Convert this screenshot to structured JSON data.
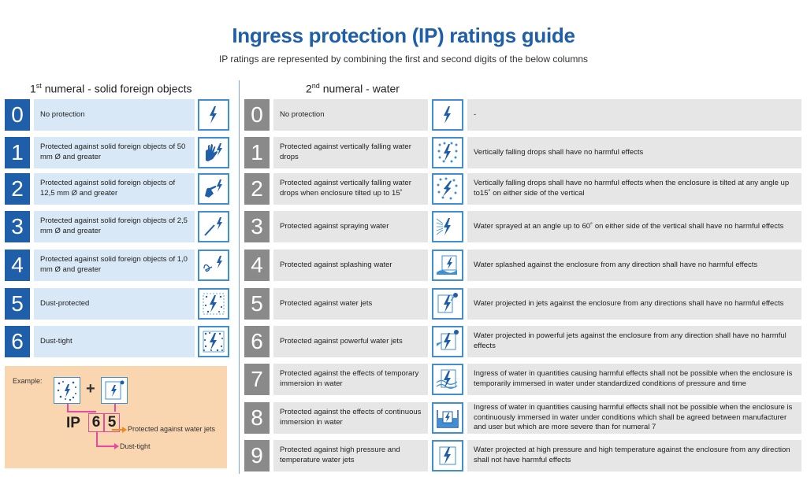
{
  "title": "Ingress protection (IP) ratings guide",
  "subtitle": "IP ratings are represented by combining the first and second digits of the below columns",
  "first_numeral": {
    "heading_pre": "1",
    "heading_sup": "st",
    "heading_post": " numeral - solid foreign objects",
    "rows": [
      {
        "num": "0",
        "desc": "No protection",
        "icon": "lightning-icon"
      },
      {
        "num": "1",
        "desc": "Protected against solid foreign objects of 50 mm Ø and greater",
        "icon": "hand-icon"
      },
      {
        "num": "2",
        "desc": "Protected against solid foreign objects of 12,5 mm Ø and greater",
        "icon": "finger-icon"
      },
      {
        "num": "3",
        "desc": "Protected against solid foreign objects of 2,5 mm Ø and greater",
        "icon": "tool-icon"
      },
      {
        "num": "4",
        "desc": "Protected against solid foreign objects of 1,0 mm Ø and greater",
        "icon": "wire-icon"
      },
      {
        "num": "5",
        "desc": "Dust-protected",
        "icon": "dust-icon"
      },
      {
        "num": "6",
        "desc": "Dust-tight",
        "icon": "dust-tight-icon"
      }
    ]
  },
  "second_numeral": {
    "heading_pre": "2",
    "heading_sup": "nd",
    "heading_post": " numeral - water",
    "rows": [
      {
        "num": "0",
        "desc": "No protection",
        "note": "-",
        "icon": "lightning-icon"
      },
      {
        "num": "1",
        "desc": "Protected against vertically falling water drops",
        "note": "Vertically falling drops shall have no harmful effects",
        "icon": "drops-icon"
      },
      {
        "num": "2",
        "desc": "Protected against vertically falling water drops when enclosure tilted up to 15˚",
        "note": "Vertically falling drops shall have no harmful effects when the enclosure is tilted at any angle up to15˚ on either side of the vertical",
        "icon": "tilted-drops-icon"
      },
      {
        "num": "3",
        "desc": "Protected against spraying water",
        "note": "Water sprayed at an angle up to 60˚ on either side of the vertical shall have no harmful effects",
        "icon": "spray-icon"
      },
      {
        "num": "4",
        "desc": "Protected against splashing water",
        "note": "Water splashed against the enclosure from any direction shall have no harmful effects",
        "icon": "splash-icon"
      },
      {
        "num": "5",
        "desc": "Protected against water jets",
        "note": "Water projected in jets against the enclosure from any directions shall have no harmful effects",
        "icon": "jet-icon"
      },
      {
        "num": "6",
        "desc": "Protected against powerful water jets",
        "note": "Water projected in powerful jets against the enclosure from any direction shall have no harmful effects",
        "icon": "powerful-jet-icon"
      },
      {
        "num": "7",
        "desc": "Protected against the effects of temporary immersion in water",
        "note": "Ingress of water in quantities causing harmful effects shall not be possible when the enclosure is temporarily immersed in water under standardized conditions of pressure and time",
        "icon": "immersion-icon"
      },
      {
        "num": "8",
        "desc": "Protected against the effects of continuous immersion in water",
        "note": "Ingress of water in quantities causing harmful effects shall not be possible when the enclosure is continuously immersed in water under conditions which shall be agreed between manufacturer and user but which are more severe than for numeral 7",
        "icon": "continuous-immersion-icon"
      },
      {
        "num": "9",
        "desc": "Protected against high pressure and temperature water jets",
        "note": "Water projected at high pressure and high temperature against the enclosure from any direction shall not have harmful effects",
        "icon": "high-pressure-jet-icon"
      }
    ]
  },
  "example": {
    "label": "Example:",
    "plus": "+",
    "ip": "IP",
    "digit1": "6",
    "digit2": "5",
    "note_second": "Protected against water jets",
    "note_first": "Dust-tight"
  },
  "colors": {
    "title": "#1f5ea8",
    "first_num_bg": "#1f5ea8",
    "first_desc_bg": "#d8e8f6",
    "second_num_bg": "#8a8a8a",
    "second_bg": "#e6e6e6",
    "icon_border": "#3f8fd2",
    "example_bg": "#f9d6b0",
    "pink": "#e54aa0",
    "orange": "#f08a1c"
  }
}
